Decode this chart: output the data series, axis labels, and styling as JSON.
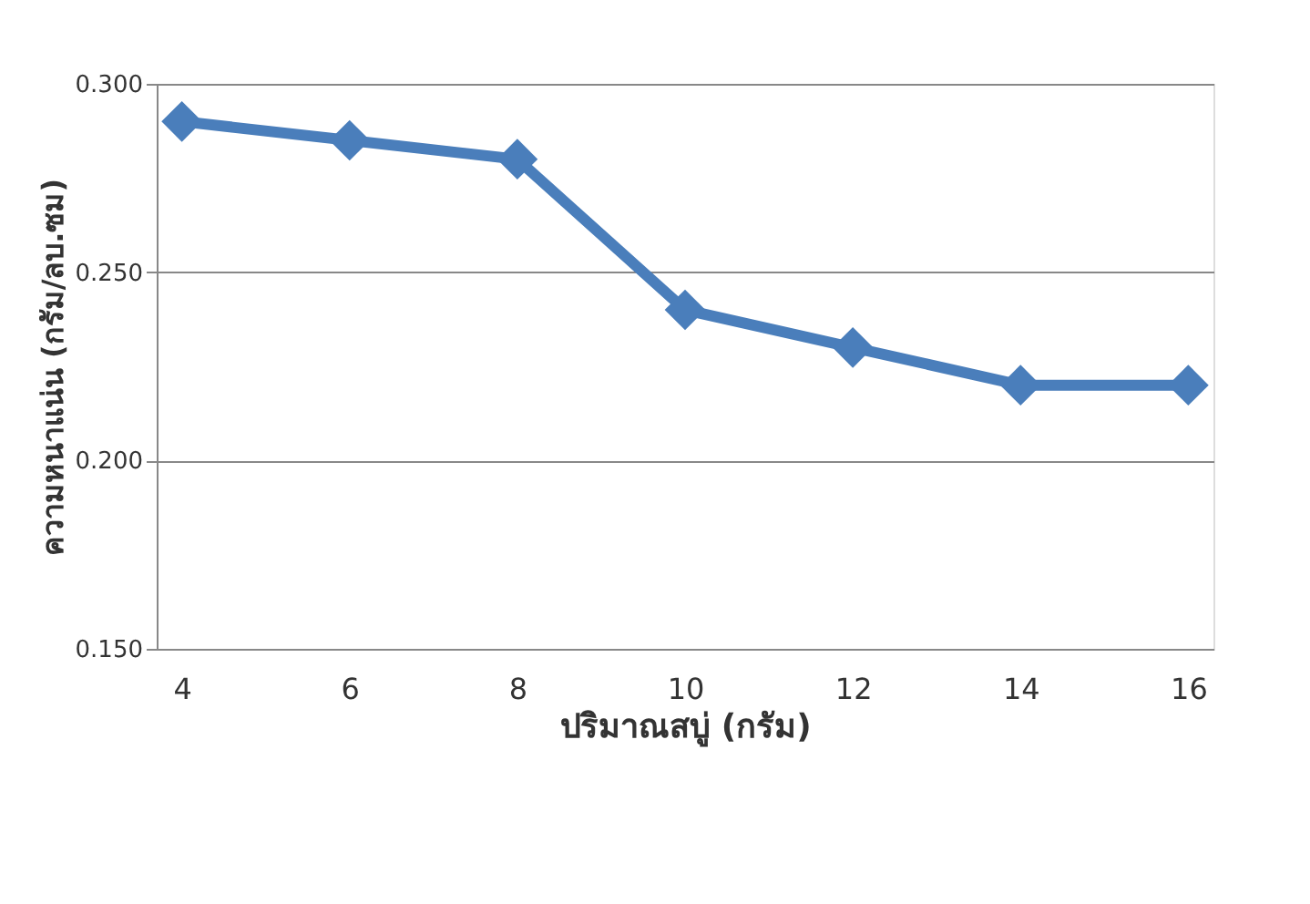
{
  "chart_data": {
    "type": "line",
    "xlabel": "ปริมาณสบู่ (กรัม)",
    "ylabel": "ความหนาแน่น (กรัม/ลบ.ซม)",
    "categories": [
      "4",
      "6",
      "8",
      "10",
      "12",
      "14",
      "16"
    ],
    "series": [
      {
        "color": "#4a7ebb",
        "values": [
          0.29,
          0.285,
          0.28,
          0.24,
          0.23,
          0.22,
          0.22
        ]
      }
    ],
    "ylim": [
      0.15,
      0.3
    ],
    "yticks": [
      {
        "value": 0.15,
        "label": "0.150"
      },
      {
        "value": 0.2,
        "label": "0.200"
      },
      {
        "value": 0.25,
        "label": "0.250"
      },
      {
        "value": 0.3,
        "label": "0.300"
      }
    ],
    "grid": "y",
    "marker": "diamond"
  }
}
